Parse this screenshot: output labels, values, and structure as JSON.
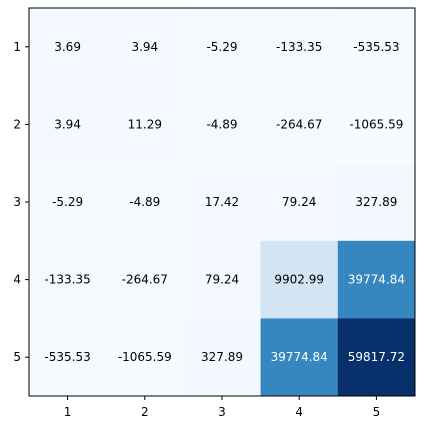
{
  "chart_data": {
    "type": "heatmap",
    "colormap": "Blues",
    "x_ticks": [
      "1",
      "2",
      "3",
      "4",
      "5"
    ],
    "y_ticks": [
      "1",
      "2",
      "3",
      "4",
      "5"
    ],
    "values": [
      [
        3.69,
        3.94,
        -5.29,
        -133.35,
        -535.53
      ],
      [
        3.94,
        11.29,
        -4.89,
        -264.67,
        -1065.59
      ],
      [
        -5.29,
        -4.89,
        17.42,
        79.24,
        327.89
      ],
      [
        -133.35,
        -264.67,
        79.24,
        9902.99,
        39774.84
      ],
      [
        -535.53,
        -1065.59,
        327.89,
        39774.84,
        59817.72
      ]
    ],
    "cell_labels": [
      [
        "3.69",
        "3.94",
        "-5.29",
        "-133.35",
        "-535.53"
      ],
      [
        "3.94",
        "11.29",
        "-4.89",
        "-264.67",
        "-1065.59"
      ],
      [
        "-5.29",
        "-4.89",
        "17.42",
        "79.24",
        "327.89"
      ],
      [
        "-133.35",
        "-264.67",
        "79.24",
        "9902.99",
        "39774.84"
      ],
      [
        "-535.53",
        "-1065.59",
        "327.89",
        "39774.84",
        "59817.72"
      ]
    ],
    "grid": false,
    "title": "",
    "xlabel": "",
    "ylabel": ""
  }
}
